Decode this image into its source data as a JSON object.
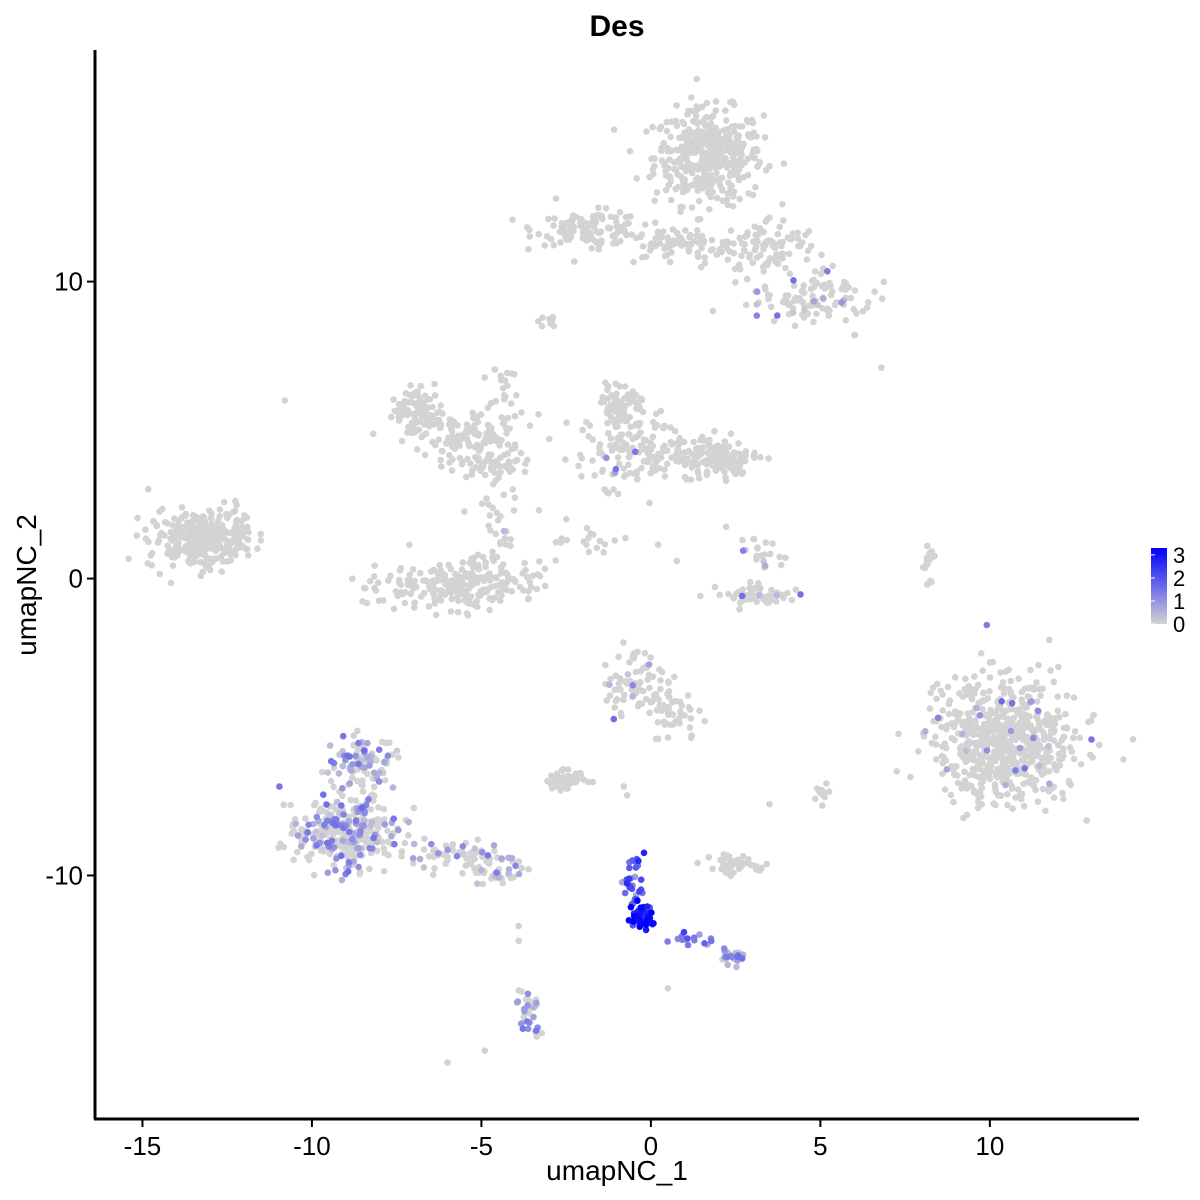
{
  "chart_data": {
    "type": "scatter",
    "title": "Des",
    "xlabel": "umapNC_1",
    "ylabel": "umapNC_2",
    "xlim": [
      -16.4,
      14.4
    ],
    "ylim": [
      -18.2,
      17.8
    ],
    "xticks": [
      -15,
      -10,
      -5,
      0,
      5,
      10
    ],
    "yticks": [
      -10,
      0,
      10
    ],
    "xtick_labels": [
      "-15",
      "-10",
      "-5",
      "0",
      "5",
      "10"
    ],
    "ytick_labels": [
      "-10",
      "0",
      "10"
    ],
    "grid": false,
    "legend_placement": "right",
    "color_scale": {
      "low": "#d3d3d3",
      "high": "#0000ff",
      "min": 0,
      "max": 3.3,
      "breaks": [
        0,
        1,
        2,
        3
      ],
      "break_labels": [
        "0",
        "1",
        "2",
        "3"
      ]
    },
    "clusters": [
      {
        "cx": 1.7,
        "cy": 14.2,
        "sx": 1.0,
        "sy": 1.0,
        "n": 420,
        "expr": 0
      },
      {
        "cx": -1.8,
        "cy": 11.8,
        "sx": 1.0,
        "sy": 0.35,
        "n": 110,
        "expr": 0
      },
      {
        "cx": 0.8,
        "cy": 11.2,
        "sx": 1.4,
        "sy": 0.4,
        "n": 90,
        "expr": 0
      },
      {
        "cx": 3.5,
        "cy": 11.2,
        "sx": 0.9,
        "sy": 0.6,
        "n": 80,
        "expr": 0
      },
      {
        "cx": 4.8,
        "cy": 9.5,
        "sx": 1.1,
        "sy": 0.55,
        "n": 110,
        "expr": 0.15
      },
      {
        "cx": -3.0,
        "cy": 8.7,
        "sx": 0.2,
        "sy": 0.15,
        "n": 8,
        "expr": 0
      },
      {
        "cx": -6.9,
        "cy": 5.6,
        "sx": 0.5,
        "sy": 0.5,
        "n": 90,
        "expr": 0
      },
      {
        "cx": -5.3,
        "cy": 4.7,
        "sx": 1.0,
        "sy": 0.55,
        "n": 100,
        "expr": 0
      },
      {
        "cx": -4.9,
        "cy": 3.8,
        "sx": 0.6,
        "sy": 0.3,
        "n": 50,
        "expr": 0
      },
      {
        "cx": -4.3,
        "cy": 6.0,
        "sx": 0.35,
        "sy": 1.2,
        "n": 30,
        "expr": 0
      },
      {
        "cx": -5.6,
        "cy": -0.2,
        "sx": 1.5,
        "sy": 0.5,
        "n": 230,
        "expr": 0
      },
      {
        "cx": -4.5,
        "cy": 1.5,
        "sx": 0.4,
        "sy": 0.8,
        "n": 30,
        "expr": 0.05
      },
      {
        "cx": -0.8,
        "cy": 5.8,
        "sx": 0.4,
        "sy": 0.45,
        "n": 70,
        "expr": 0
      },
      {
        "cx": -0.8,
        "cy": 4.2,
        "sx": 0.9,
        "sy": 0.8,
        "n": 110,
        "expr": 0.05
      },
      {
        "cx": 1.5,
        "cy": 4.2,
        "sx": 1.1,
        "sy": 0.45,
        "n": 130,
        "expr": 0
      },
      {
        "cx": 2.1,
        "cy": 3.9,
        "sx": 0.5,
        "sy": 0.3,
        "n": 50,
        "expr": 0
      },
      {
        "cx": -1.5,
        "cy": 1.2,
        "sx": 1.0,
        "sy": 0.35,
        "n": 20,
        "expr": 0
      },
      {
        "cx": 3.3,
        "cy": 0.9,
        "sx": 0.4,
        "sy": 0.5,
        "n": 20,
        "expr": 0.1
      },
      {
        "cx": 3.3,
        "cy": -0.6,
        "sx": 0.85,
        "sy": 0.25,
        "n": 60,
        "expr": 0.1
      },
      {
        "cx": -13.4,
        "cy": 1.3,
        "sx": 0.9,
        "sy": 0.6,
        "n": 240,
        "expr": 0
      },
      {
        "cx": -12.3,
        "cy": 1.7,
        "sx": 0.35,
        "sy": 0.6,
        "n": 30,
        "expr": 0
      },
      {
        "cx": 8.2,
        "cy": 0.5,
        "sx": 0.12,
        "sy": 0.7,
        "n": 15,
        "expr": 0
      },
      {
        "cx": 10.5,
        "cy": -5.5,
        "sx": 1.3,
        "sy": 1.3,
        "n": 650,
        "expr": 0.03
      },
      {
        "cx": -0.5,
        "cy": -3.6,
        "sx": 0.5,
        "sy": 0.6,
        "n": 70,
        "expr": 0.05
      },
      {
        "cx": 0.6,
        "cy": -4.5,
        "sx": 0.55,
        "sy": 0.6,
        "n": 50,
        "expr": 0
      },
      {
        "cx": -2.5,
        "cy": -6.8,
        "sx": 0.35,
        "sy": 0.18,
        "n": 50,
        "expr": 0
      },
      {
        "cx": 2.4,
        "cy": -9.6,
        "sx": 0.45,
        "sy": 0.18,
        "n": 50,
        "expr": 0
      },
      {
        "cx": 5.0,
        "cy": -7.3,
        "sx": 0.15,
        "sy": 0.2,
        "n": 12,
        "expr": 0
      },
      {
        "cx": -9.0,
        "cy": -8.5,
        "sx": 0.9,
        "sy": 0.75,
        "n": 320,
        "expr": 0.3
      },
      {
        "cx": -8.5,
        "cy": -6.2,
        "sx": 0.55,
        "sy": 0.6,
        "n": 90,
        "expr": 0.45
      },
      {
        "cx": -5.5,
        "cy": -9.3,
        "sx": 1.0,
        "sy": 0.35,
        "n": 70,
        "expr": 0.3
      },
      {
        "cx": -4.5,
        "cy": -10.1,
        "sx": 0.5,
        "sy": 0.2,
        "n": 25,
        "expr": 0.35
      },
      {
        "cx": -3.6,
        "cy": -14.5,
        "sx": 0.2,
        "sy": 0.5,
        "n": 35,
        "expr": 0.35
      },
      {
        "cx": -0.5,
        "cy": -10.2,
        "sx": 0.15,
        "sy": 0.6,
        "n": 30,
        "expr": 1.7
      },
      {
        "cx": -0.25,
        "cy": -11.4,
        "sx": 0.2,
        "sy": 0.3,
        "n": 40,
        "expr": 2.9
      },
      {
        "cx": 1.3,
        "cy": -12.2,
        "sx": 0.5,
        "sy": 0.15,
        "n": 15,
        "expr": 1.5
      },
      {
        "cx": 2.4,
        "cy": -12.8,
        "sx": 0.2,
        "sy": 0.15,
        "n": 25,
        "expr": 0.9
      }
    ],
    "scatter_points": [
      [
        -10.8,
        6.0
      ],
      [
        6.8,
        7.1
      ],
      [
        6.0,
        8.2
      ],
      [
        5.0,
        -7.2
      ],
      [
        3.5,
        -7.6
      ],
      [
        -3.9,
        -11.7
      ],
      [
        -3.9,
        -12.2
      ],
      [
        -6.0,
        -16.3
      ],
      [
        -4.9,
        -15.9
      ],
      [
        0.5,
        -13.8
      ],
      [
        2.7,
        1.3
      ],
      [
        -3.3,
        2.3
      ],
      [
        -2.5,
        2.0
      ],
      [
        -0.8,
        -7.0
      ],
      [
        -0.7,
        -7.3
      ],
      [
        -4.0,
        4.4
      ],
      [
        -3.0,
        4.7
      ],
      [
        -1.0,
        6.0
      ],
      [
        2.2,
        3.4
      ],
      [
        -2.8,
        12.8
      ]
    ]
  }
}
